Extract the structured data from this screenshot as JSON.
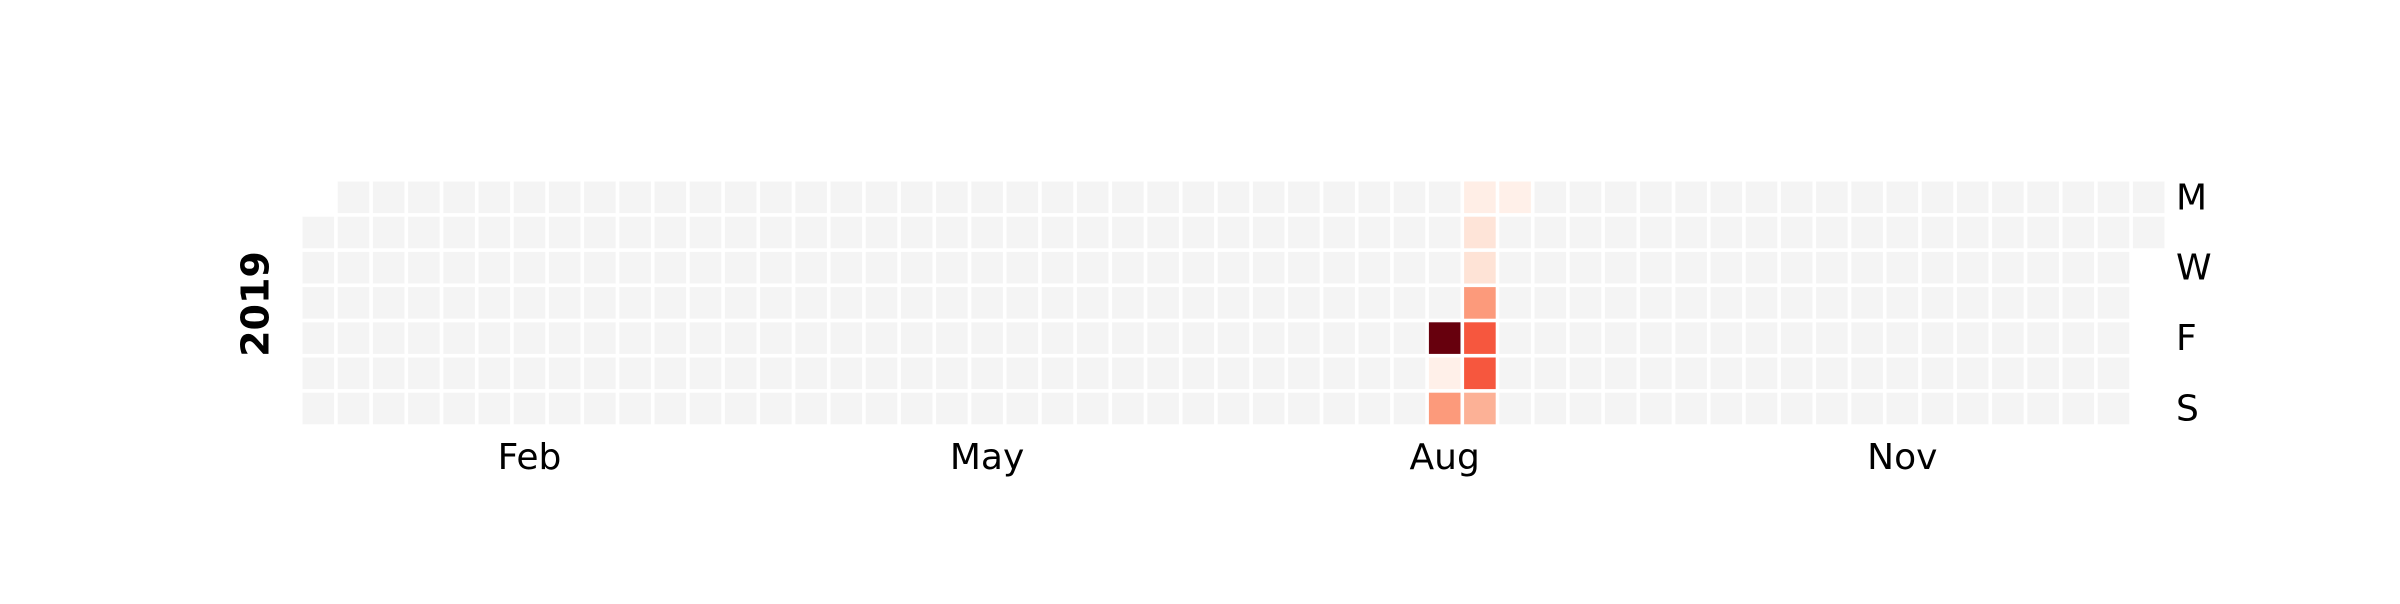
{
  "chart_data": {
    "type": "heatmap",
    "title": "",
    "year": "2019",
    "first_day_weekday": 1,
    "days_in_year": 365,
    "month_labels": [
      {
        "label": "Feb",
        "month": 2
      },
      {
        "label": "May",
        "month": 5
      },
      {
        "label": "Aug",
        "month": 8
      },
      {
        "label": "Nov",
        "month": 11
      }
    ],
    "weekday_labels": [
      {
        "label": "M",
        "weekday": 0
      },
      {
        "label": "W",
        "weekday": 2
      },
      {
        "label": "F",
        "weekday": 4
      },
      {
        "label": "S",
        "weekday": 6
      }
    ],
    "empty_color": "#f4f4f4",
    "colormap": "Reds",
    "color_stops": [
      "#fff5f0",
      "#fee0d2",
      "#fcbba1",
      "#fc9272",
      "#fb6a4a",
      "#ef3b2c",
      "#cb181d",
      "#a50f15",
      "#67000d"
    ],
    "vmin": 0,
    "vmax": 10,
    "values": [
      {
        "date": "2019-08-16",
        "value": 10
      },
      {
        "date": "2019-08-17",
        "value": 0.3
      },
      {
        "date": "2019-08-18",
        "value": 3.5
      },
      {
        "date": "2019-08-19",
        "value": 0.4
      },
      {
        "date": "2019-08-20",
        "value": 1.0
      },
      {
        "date": "2019-08-21",
        "value": 1.1
      },
      {
        "date": "2019-08-22",
        "value": 3.5
      },
      {
        "date": "2019-08-23",
        "value": 5.5
      },
      {
        "date": "2019-08-24",
        "value": 5.5
      },
      {
        "date": "2019-08-25",
        "value": 2.8
      },
      {
        "date": "2019-08-26",
        "value": 0.3
      }
    ]
  }
}
